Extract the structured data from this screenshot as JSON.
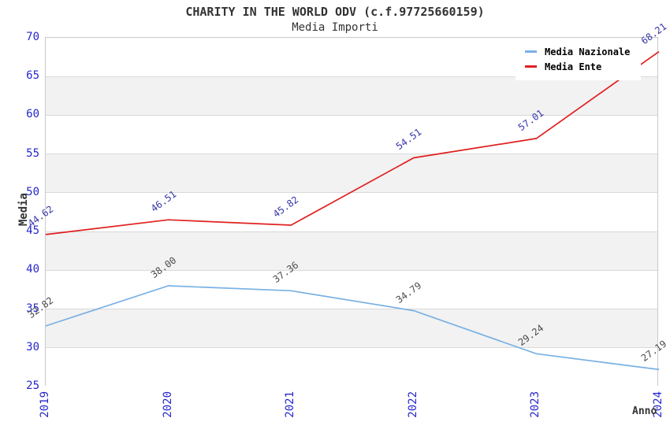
{
  "header": {
    "title": "CHARITY IN THE WORLD ODV (c.f.97725660159)",
    "subtitle": "Media Importi"
  },
  "chart_data": {
    "type": "line",
    "title": "CHARITY IN THE WORLD ODV (c.f.97725660159)",
    "subtitle": "Media Importi",
    "xlabel": "Anno",
    "ylabel": "Media",
    "categories": [
      "2019",
      "2020",
      "2021",
      "2022",
      "2023",
      "2024"
    ],
    "series": [
      {
        "name": "Media Nazionale",
        "color": "#79b1e2",
        "label_color": "#4b4b4b",
        "values": [
          32.82,
          38.0,
          37.36,
          34.79,
          29.24,
          27.19
        ],
        "labels": [
          "32.82",
          "38.00",
          "37.36",
          "34.79",
          "29.24",
          "27.19"
        ]
      },
      {
        "name": "Media Ente",
        "color": "#e02020",
        "label_color": "#3434a8",
        "values": [
          44.62,
          46.51,
          45.82,
          54.51,
          57.01,
          68.21
        ],
        "labels": [
          "44.62",
          "46.51",
          "45.82",
          "54.51",
          "57.01",
          "68.21"
        ]
      }
    ],
    "ylim": [
      25,
      70
    ],
    "ytick_step": 5,
    "yticks": [
      "70",
      "65",
      "60",
      "55",
      "50",
      "45",
      "40",
      "35",
      "30",
      "25"
    ],
    "grid": "horizontal-bands-alternating",
    "legend_position": "top-right"
  },
  "colors": {
    "background": "#ffffff",
    "title_text": "#333333",
    "tick_label": "#2626cc",
    "band_fill": "#f2f2f2",
    "grid_line": "#d9d9d9",
    "plot_border": "#c9c9c9",
    "legend_text": "#000000"
  }
}
